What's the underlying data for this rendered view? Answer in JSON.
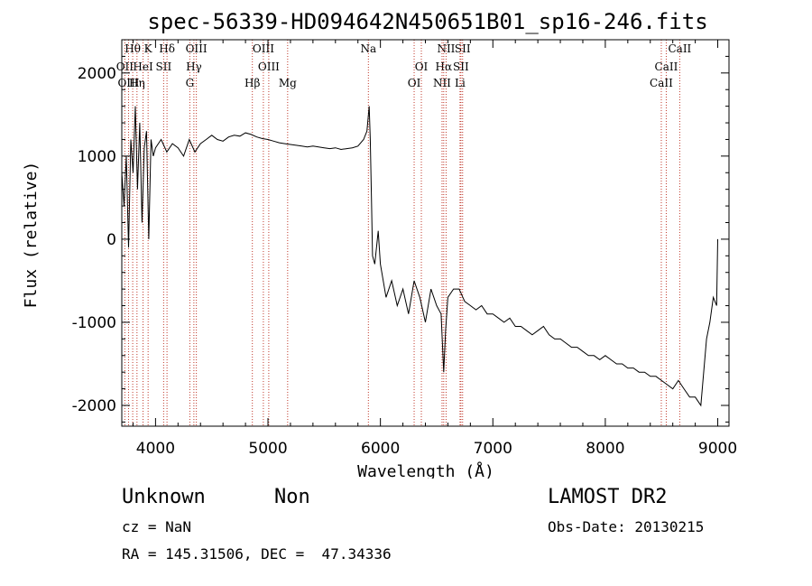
{
  "title": "spec-56339-HD094642N450651B01_sp16-246.fits",
  "xlabel": "Wavelength (Å)",
  "ylabel": "Flux (relative)",
  "info": {
    "class": "Unknown",
    "subclass": "Non",
    "cz": "cz = NaN",
    "coords": "RA = 145.31506, DEC =  47.34336",
    "survey": "LAMOST DR2",
    "obsdate": "Obs-Date: 20130215"
  },
  "colors": {
    "spectrum": "#000000",
    "lines": "#c0392b",
    "axes": "#000000"
  },
  "chart_data": {
    "type": "line",
    "title": "spec-56339-HD094642N450651B01_sp16-246.fits",
    "xlabel": "Wavelength (Å)",
    "ylabel": "Flux (relative)",
    "xlim": [
      3700,
      9100
    ],
    "ylim": [
      -2250,
      2400
    ],
    "xticks": [
      4000,
      5000,
      6000,
      7000,
      8000,
      9000
    ],
    "yticks": [
      -2000,
      -1000,
      0,
      1000,
      2000
    ],
    "grid": false,
    "series": [
      {
        "x": [
          3700,
          3720,
          3740,
          3760,
          3780,
          3800,
          3820,
          3840,
          3860,
          3880,
          3900,
          3920,
          3940,
          3960,
          3980,
          4000,
          4050,
          4100,
          4150,
          4200,
          4250,
          4300,
          4350,
          4400,
          4450,
          4500,
          4550,
          4600,
          4650,
          4700,
          4750,
          4800,
          4850,
          4900,
          4950,
          5000,
          5050,
          5100,
          5150,
          5200,
          5250,
          5300,
          5350,
          5400,
          5450,
          5500,
          5550,
          5600,
          5650,
          5700,
          5750,
          5800,
          5850,
          5880,
          5900,
          5910,
          5920,
          5930,
          5950,
          5980,
          6000,
          6050,
          6100,
          6150,
          6200,
          6250,
          6300,
          6350,
          6400,
          6450,
          6500,
          6540,
          6563,
          6580,
          6600,
          6650,
          6700,
          6750,
          6800,
          6850,
          6900,
          6950,
          7000,
          7050,
          7100,
          7150,
          7200,
          7250,
          7300,
          7350,
          7400,
          7450,
          7500,
          7550,
          7600,
          7650,
          7700,
          7750,
          7800,
          7850,
          7900,
          7950,
          8000,
          8050,
          8100,
          8150,
          8200,
          8250,
          8300,
          8350,
          8400,
          8450,
          8500,
          8550,
          8600,
          8650,
          8700,
          8750,
          8800,
          8850,
          8900,
          8930,
          8960,
          8990,
          9000
        ],
        "y": [
          800,
          400,
          1000,
          -100,
          1200,
          800,
          1600,
          600,
          1400,
          200,
          1100,
          1300,
          0,
          1200,
          1000,
          1100,
          1200,
          1050,
          1150,
          1100,
          1000,
          1200,
          1050,
          1150,
          1200,
          1250,
          1200,
          1180,
          1230,
          1250,
          1240,
          1280,
          1260,
          1230,
          1210,
          1200,
          1180,
          1160,
          1150,
          1140,
          1130,
          1120,
          1110,
          1120,
          1110,
          1100,
          1090,
          1100,
          1080,
          1090,
          1100,
          1120,
          1200,
          1300,
          1600,
          1200,
          500,
          -200,
          -300,
          100,
          -300,
          -700,
          -500,
          -800,
          -600,
          -900,
          -500,
          -700,
          -1000,
          -600,
          -800,
          -900,
          -1600,
          -1100,
          -700,
          -600,
          -600,
          -750,
          -800,
          -850,
          -800,
          -900,
          -900,
          -950,
          -1000,
          -950,
          -1050,
          -1050,
          -1100,
          -1150,
          -1100,
          -1050,
          -1150,
          -1200,
          -1200,
          -1250,
          -1300,
          -1300,
          -1350,
          -1400,
          -1400,
          -1450,
          -1400,
          -1450,
          -1500,
          -1500,
          -1550,
          -1550,
          -1600,
          -1600,
          -1650,
          -1650,
          -1700,
          -1750,
          -1800,
          -1700,
          -1800,
          -1900,
          -1900,
          -2000,
          -1200,
          -1000,
          -700,
          -800,
          0
        ]
      }
    ],
    "lines": [
      {
        "label": "Hθ",
        "x": 3797
      },
      {
        "label": "OII",
        "x": 3727
      },
      {
        "label": "OIII",
        "x": 3760
      },
      {
        "label": "K",
        "x": 3934
      },
      {
        "label": "HeI",
        "x": 3889
      },
      {
        "label": "Hη",
        "x": 3835
      },
      {
        "label": "Hδ",
        "x": 4102
      },
      {
        "label": "SII",
        "x": 4072
      },
      {
        "label": "G",
        "x": 4305
      },
      {
        "label": "OIII",
        "x": 4363
      },
      {
        "label": "Hγ",
        "x": 4341
      },
      {
        "label": "Hβ",
        "x": 4861
      },
      {
        "label": "OIII",
        "x": 4959
      },
      {
        "label": "OIII",
        "x": 5007
      },
      {
        "label": "Mg",
        "x": 5175
      },
      {
        "label": "Na",
        "x": 5893
      },
      {
        "label": "OI",
        "x": 6364
      },
      {
        "label": "OI",
        "x": 6300
      },
      {
        "label": "NII",
        "x": 6584
      },
      {
        "label": "Hα",
        "x": 6563
      },
      {
        "label": "NII",
        "x": 6548
      },
      {
        "label": "SII",
        "x": 6731
      },
      {
        "label": "SII",
        "x": 6716
      },
      {
        "label": "Li",
        "x": 6708
      },
      {
        "label": "CaII",
        "x": 8662
      },
      {
        "label": "CaII",
        "x": 8542
      },
      {
        "label": "CaII",
        "x": 8498
      }
    ]
  }
}
